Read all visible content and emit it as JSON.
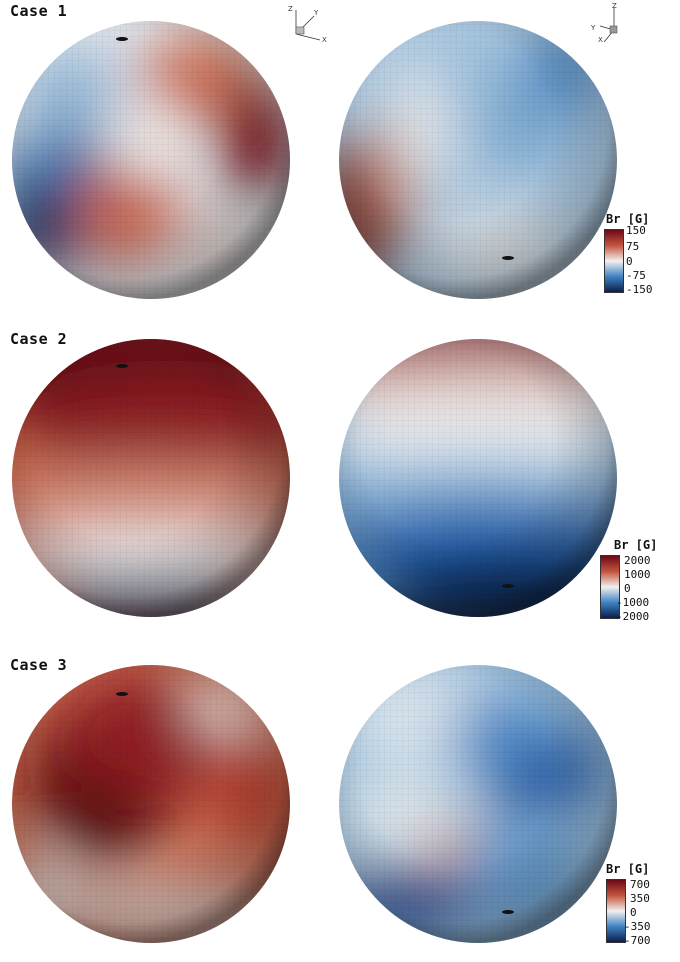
{
  "cases": [
    {
      "label": "Case 1",
      "colorbar": {
        "title": "Br [G]",
        "ticks": [
          "150",
          "75",
          "0",
          "-75",
          "-150"
        ]
      }
    },
    {
      "label": "Case 2",
      "colorbar": {
        "title": "Br [G]",
        "ticks": [
          "2000",
          "1000",
          "0",
          "-1000",
          "-2000"
        ]
      }
    },
    {
      "label": "Case 3",
      "colorbar": {
        "title": "Br [G]",
        "ticks": [
          "700",
          "350",
          "0",
          "-350",
          "-700"
        ]
      }
    }
  ],
  "axes": {
    "left": [
      "Z",
      "Y",
      "X"
    ],
    "right": [
      "Z",
      "Y",
      "X"
    ]
  },
  "colors": {
    "dark_red": "#6b0a16",
    "red": "#b23a2a",
    "white": "#f2f0ee",
    "blue": "#2f6fb8",
    "dark_blue": "#0b1d4d"
  }
}
